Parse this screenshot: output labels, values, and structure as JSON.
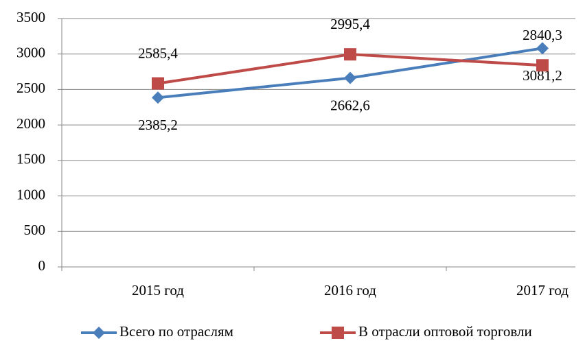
{
  "chart_data": {
    "type": "line",
    "categories": [
      "2015 год",
      "2016 год",
      "2017 год"
    ],
    "series": [
      {
        "name": "Всего по отраслям",
        "color": "#4a7ebb",
        "marker": "diamond",
        "values": [
          2385.2,
          2662.6,
          3081.2
        ],
        "value_labels": [
          "2385,2",
          "2662,6",
          "3081,2"
        ],
        "label_position": "below"
      },
      {
        "name": "В отрасли оптовой  торговли",
        "color": "#be4b48",
        "marker": "square",
        "values": [
          2585.4,
          2995.4,
          2840.3
        ],
        "value_labels": [
          "2585,4",
          "2995,4",
          "2840,3"
        ],
        "label_position": "above"
      }
    ],
    "ylim": [
      0,
      3500
    ],
    "yticks": [
      0,
      500,
      1000,
      1500,
      2000,
      2500,
      3000,
      3500
    ],
    "grid": true,
    "legend": "bottom"
  }
}
